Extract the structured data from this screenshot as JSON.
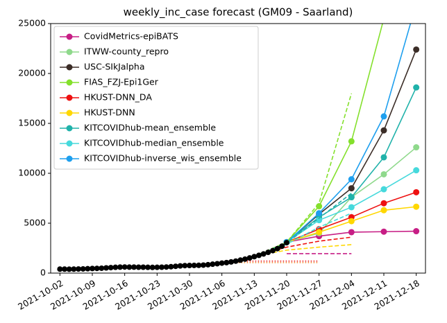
{
  "chart_data": {
    "type": "line",
    "title": "weekly_inc_case forecast (GM09 - Saarland)",
    "xlim": [
      "2021-09-30",
      "2021-12-20"
    ],
    "xticks": [
      "2021-10-02",
      "2021-10-09",
      "2021-10-16",
      "2021-10-23",
      "2021-10-30",
      "2021-11-06",
      "2021-11-13",
      "2021-11-20",
      "2021-11-27",
      "2021-12-04",
      "2021-12-11",
      "2021-12-18"
    ],
    "ylim": [
      0,
      25000
    ],
    "yticks": [
      0,
      5000,
      10000,
      15000,
      20000,
      25000
    ],
    "legend": "upper left",
    "series": [
      {
        "name": "CovidMetrics-epiBATS",
        "color": "#c71e85",
        "linestyle": "solid",
        "marker": true,
        "x": [
          "2021-11-20",
          "2021-11-27",
          "2021-12-04",
          "2021-12-11",
          "2021-12-18"
        ],
        "values": [
          3100,
          3700,
          4100,
          4150,
          4200
        ]
      },
      {
        "name": "ITWW-county_repro",
        "color": "#8fd98c",
        "linestyle": "solid",
        "marker": true,
        "x": [
          "2021-11-20",
          "2021-11-27",
          "2021-12-04",
          "2021-12-11",
          "2021-12-18"
        ],
        "values": [
          3100,
          4000,
          7600,
          9900,
          12600
        ]
      },
      {
        "name": "USC-SIkJalpha",
        "color": "#3b2d27",
        "linestyle": "solid",
        "marker": true,
        "x": [
          "2021-11-20",
          "2021-11-27",
          "2021-12-04",
          "2021-12-11",
          "2021-12-18"
        ],
        "values": [
          3100,
          5900,
          8500,
          14300,
          22400
        ]
      },
      {
        "name": "FIAS_FZJ-Epi1Ger",
        "color": "#84e02c",
        "linestyle": "solid",
        "marker": true,
        "x": [
          "2021-11-20",
          "2021-11-27",
          "2021-12-04",
          "2021-12-11",
          "2021-12-18"
        ],
        "values": [
          3100,
          6700,
          13200,
          25500,
          38000
        ]
      },
      {
        "name": "HKUST-DNN_DA",
        "color": "#ee1111",
        "linestyle": "solid",
        "marker": true,
        "x": [
          "2021-11-20",
          "2021-11-27",
          "2021-12-04",
          "2021-12-11",
          "2021-12-18"
        ],
        "values": [
          3100,
          4400,
          5600,
          7000,
          8100
        ]
      },
      {
        "name": "HKUST-DNN",
        "color": "#ffd700",
        "linestyle": "solid",
        "marker": true,
        "x": [
          "2021-11-20",
          "2021-11-27",
          "2021-12-04",
          "2021-12-11",
          "2021-12-18"
        ],
        "values": [
          3100,
          4100,
          5200,
          6300,
          6650
        ]
      },
      {
        "name": "KITCOVIDhub-mean_ensemble",
        "color": "#20b2aa",
        "linestyle": "solid",
        "marker": true,
        "x": [
          "2021-11-20",
          "2021-11-27",
          "2021-12-04",
          "2021-12-11",
          "2021-12-18"
        ],
        "values": [
          3100,
          5600,
          7600,
          11600,
          18600
        ]
      },
      {
        "name": "KITCOVIDhub-median_ensemble",
        "color": "#46d9dc",
        "linestyle": "solid",
        "marker": true,
        "x": [
          "2021-11-20",
          "2021-11-27",
          "2021-12-04",
          "2021-12-11",
          "2021-12-18"
        ],
        "values": [
          3100,
          5300,
          6600,
          8400,
          10300
        ]
      },
      {
        "name": "KITCOVIDhub-inverse_wis_ensemble",
        "color": "#1e9fee",
        "linestyle": "solid",
        "marker": true,
        "x": [
          "2021-11-20",
          "2021-11-27",
          "2021-12-04",
          "2021-12-11",
          "2021-12-18"
        ],
        "values": [
          3100,
          6000,
          9400,
          15700,
          27000
        ]
      },
      {
        "color": "#84e02c",
        "linestyle": "dashed",
        "marker": false,
        "x": [
          "2021-11-13",
          "2021-11-20",
          "2021-11-27",
          "2021-12-04"
        ],
        "values": [
          1700,
          3100,
          7000,
          18000
        ]
      },
      {
        "color": "#20b2aa",
        "linestyle": "dashed",
        "marker": false,
        "x": [
          "2021-11-13",
          "2021-11-20",
          "2021-11-27",
          "2021-12-04"
        ],
        "values": [
          1700,
          3000,
          5500,
          8000
        ]
      },
      {
        "color": "#46d9dc",
        "linestyle": "dashed",
        "marker": false,
        "x": [
          "2021-11-13",
          "2021-11-20",
          "2021-11-27",
          "2021-12-04"
        ],
        "values": [
          1700,
          2900,
          4600,
          6000
        ]
      },
      {
        "color": "#ee1111",
        "linestyle": "dashed",
        "marker": false,
        "x": [
          "2021-11-13",
          "2021-11-20",
          "2021-11-27",
          "2021-12-04"
        ],
        "values": [
          1700,
          2600,
          3200,
          3600
        ]
      },
      {
        "color": "#ffd700",
        "linestyle": "dashed",
        "marker": false,
        "x": [
          "2021-11-13",
          "2021-11-20",
          "2021-11-27",
          "2021-12-04"
        ],
        "values": [
          1700,
          2300,
          2600,
          2850
        ]
      },
      {
        "color": "#c71e85",
        "linestyle": "dashed",
        "marker": false,
        "x": [
          "2021-11-20",
          "2021-11-27",
          "2021-12-04"
        ],
        "values": [
          1950,
          1950,
          1950
        ]
      },
      {
        "color": "#ee1111",
        "linestyle": "dotted",
        "marker": false,
        "x": [
          "2021-11-06",
          "2021-11-13",
          "2021-11-20",
          "2021-11-27"
        ],
        "values": [
          1200,
          1200,
          1200,
          1200
        ]
      },
      {
        "color": "#f08020",
        "linestyle": "dotted",
        "marker": false,
        "x": [
          "2021-11-06",
          "2021-11-13",
          "2021-11-20",
          "2021-11-27"
        ],
        "values": [
          1050,
          1050,
          1050,
          1050
        ]
      },
      {
        "color": "#000000",
        "linestyle": "solid",
        "marker": true,
        "x": [
          "2021-10-02",
          "2021-10-03",
          "2021-10-04",
          "2021-10-05",
          "2021-10-06",
          "2021-10-07",
          "2021-10-08",
          "2021-10-09",
          "2021-10-10",
          "2021-10-11",
          "2021-10-12",
          "2021-10-13",
          "2021-10-14",
          "2021-10-15",
          "2021-10-16",
          "2021-10-17",
          "2021-10-18",
          "2021-10-19",
          "2021-10-20",
          "2021-10-21",
          "2021-10-22",
          "2021-10-23",
          "2021-10-24",
          "2021-10-25",
          "2021-10-26",
          "2021-10-27",
          "2021-10-28",
          "2021-10-29",
          "2021-10-30",
          "2021-10-31",
          "2021-11-01",
          "2021-11-02",
          "2021-11-03",
          "2021-11-04",
          "2021-11-05",
          "2021-11-06",
          "2021-11-07",
          "2021-11-08",
          "2021-11-09",
          "2021-11-10",
          "2021-11-11",
          "2021-11-12",
          "2021-11-13",
          "2021-11-14",
          "2021-11-15",
          "2021-11-16",
          "2021-11-17",
          "2021-11-18",
          "2021-11-19",
          "2021-11-20"
        ],
        "values": [
          400,
          400,
          390,
          400,
          410,
          420,
          440,
          460,
          470,
          490,
          520,
          550,
          580,
          600,
          610,
          600,
          600,
          590,
          590,
          580,
          570,
          580,
          590,
          610,
          640,
          680,
          720,
          750,
          760,
          770,
          780,
          800,
          840,
          890,
          940,
          1000,
          1050,
          1120,
          1200,
          1300,
          1400,
          1520,
          1650,
          1780,
          1920,
          2080,
          2250,
          2450,
          2700,
          3050
        ]
      }
    ]
  }
}
